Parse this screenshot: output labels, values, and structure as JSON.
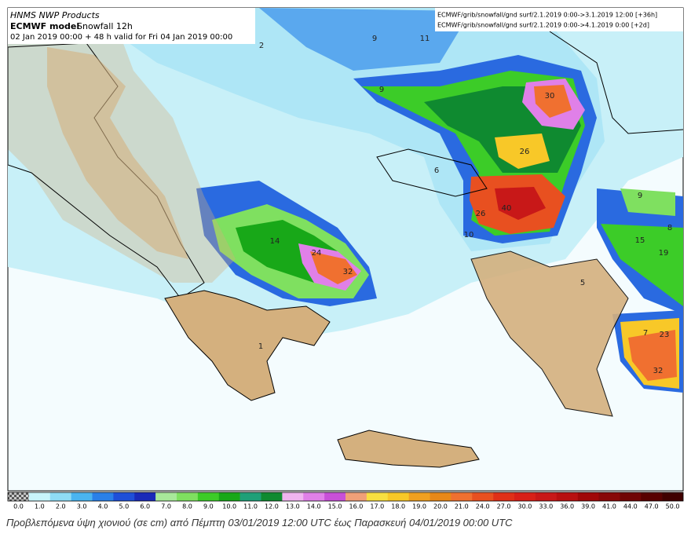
{
  "header": {
    "provider": "HNMS NWP Products",
    "model": "ECMWF model",
    "product": "Snowfall 12h",
    "run": "02 Jan 2019 00:00 + 48 h valid for Fri 04 Jan 2019 00:00"
  },
  "sources": [
    "ECMWF/grib/snowfall/gnd surf/2.1.2019 0:00->3.1.2019 12:00 [+36h]",
    "ECMWF/grib/snowfall/gnd surf/2.1.2019 0:00->4.1.2019 0:00 [+2d]"
  ],
  "map_labels": [
    "2",
    "9",
    "11",
    "9",
    "30",
    "26",
    "6",
    "26",
    "40",
    "10",
    "9",
    "8",
    "15",
    "19",
    "5",
    "14",
    "24",
    "32",
    "7",
    "23",
    "32",
    "1"
  ],
  "colorbar": {
    "labels": [
      "0.0",
      "1.0",
      "2.0",
      "3.0",
      "4.0",
      "5.0",
      "6.0",
      "7.0",
      "8.0",
      "9.0",
      "10.0",
      "11.0",
      "12.0",
      "13.0",
      "14.0",
      "15.0",
      "16.0",
      "17.0",
      "18.0",
      "19.0",
      "20.0",
      "21.0",
      "24.0",
      "27.0",
      "30.0",
      "33.0",
      "36.0",
      "39.0",
      "41.0",
      "44.0",
      "47.0",
      "50.0"
    ],
    "colors": [
      "#c8f4fb",
      "#8fdcf5",
      "#4ab4f0",
      "#2a80e8",
      "#1f4fd8",
      "#1a2ab8",
      "#a8e89a",
      "#7fe060",
      "#3ccc28",
      "#18a818",
      "#1ea078",
      "#0f8a30",
      "#f0b4f0",
      "#e080e8",
      "#c850d8",
      "#f0a078",
      "#f8e040",
      "#f8c828",
      "#f0a020",
      "#e88818",
      "#f07030",
      "#e85020",
      "#e03018",
      "#d82018",
      "#c81818",
      "#b81010",
      "#a00808",
      "#880808",
      "#700404",
      "#580000",
      "#400000"
    ]
  },
  "caption": "Προβλεπόμενα ύψη χιονιού (σε cm) από Πέμπτη 03/01/2019 12:00 UTC έως Παρασκευή 04/01/2019 00:00 UTC"
}
